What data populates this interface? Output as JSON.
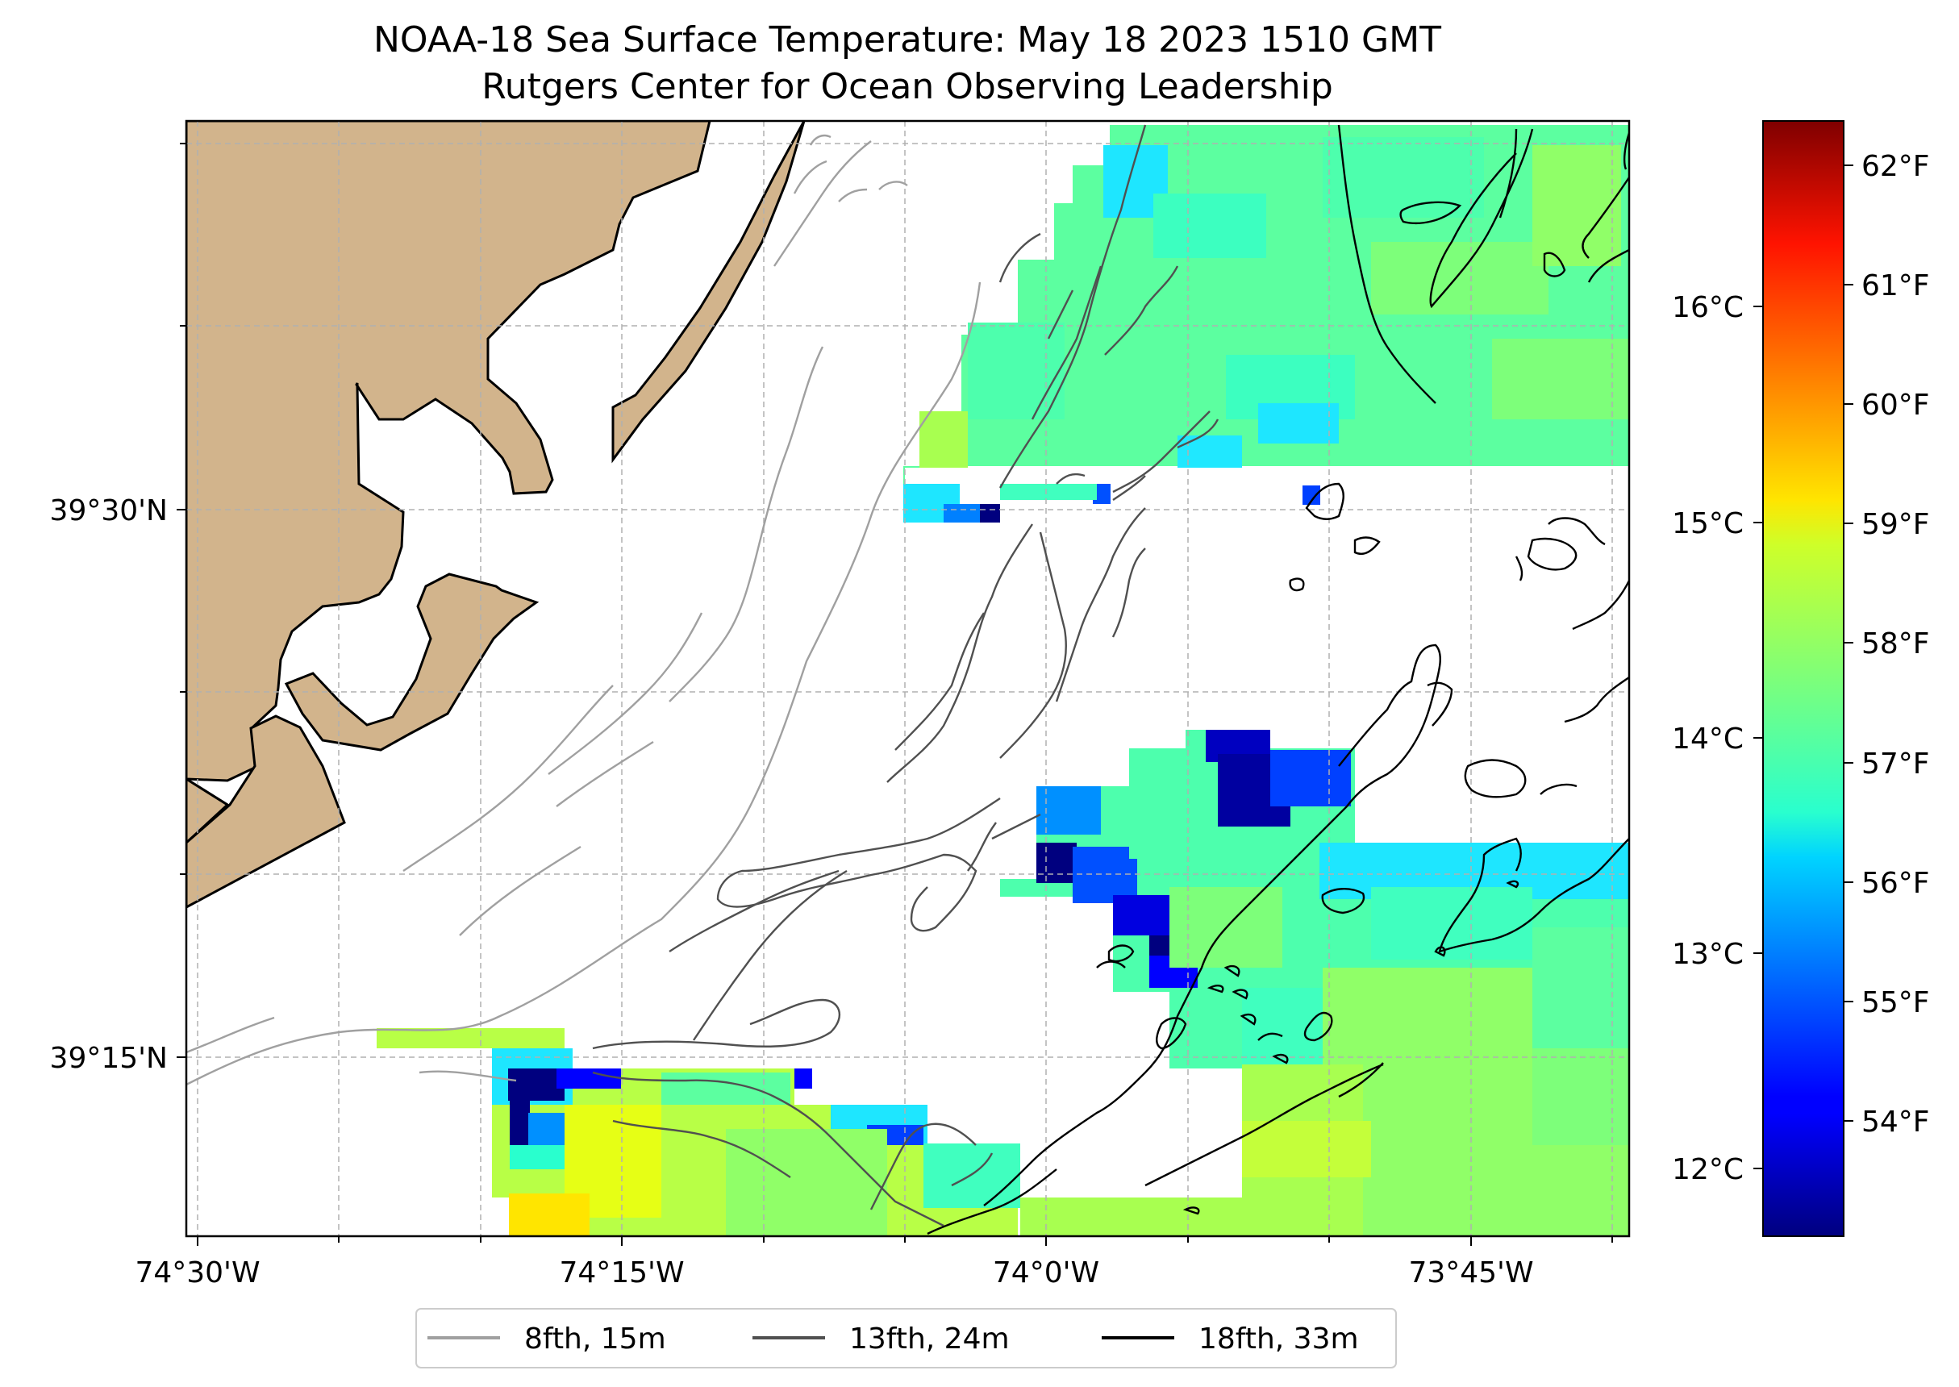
{
  "title": {
    "line1": "NOAA-18 Sea Surface Temperature: May 18 2023 1510 GMT",
    "line2": "Rutgers Center for Ocean Observing Leadership"
  },
  "map": {
    "lon_ticks": [
      "74°30'W",
      "74°15'W",
      "74°0'W",
      "73°45'W"
    ],
    "lat_ticks": [
      "39°30'N",
      "39°15'N"
    ],
    "land_color": "#d2b48c",
    "grid": true
  },
  "colorbar": {
    "colormap": "jet",
    "celsius_ticks": [
      "16°C",
      "15°C",
      "14°C",
      "13°C",
      "12°C"
    ],
    "fahrenheit_ticks": [
      "62°F",
      "61°F",
      "60°F",
      "59°F",
      "58°F",
      "57°F",
      "56°F",
      "55°F",
      "54°F"
    ]
  },
  "legend": {
    "placement": "bottom-center",
    "entries": [
      {
        "label": "8fth, 15m",
        "color": "#a0a0a0"
      },
      {
        "label": "13fth, 24m",
        "color": "#505050"
      },
      {
        "label": "18fth, 33m",
        "color": "#000000"
      }
    ]
  }
}
